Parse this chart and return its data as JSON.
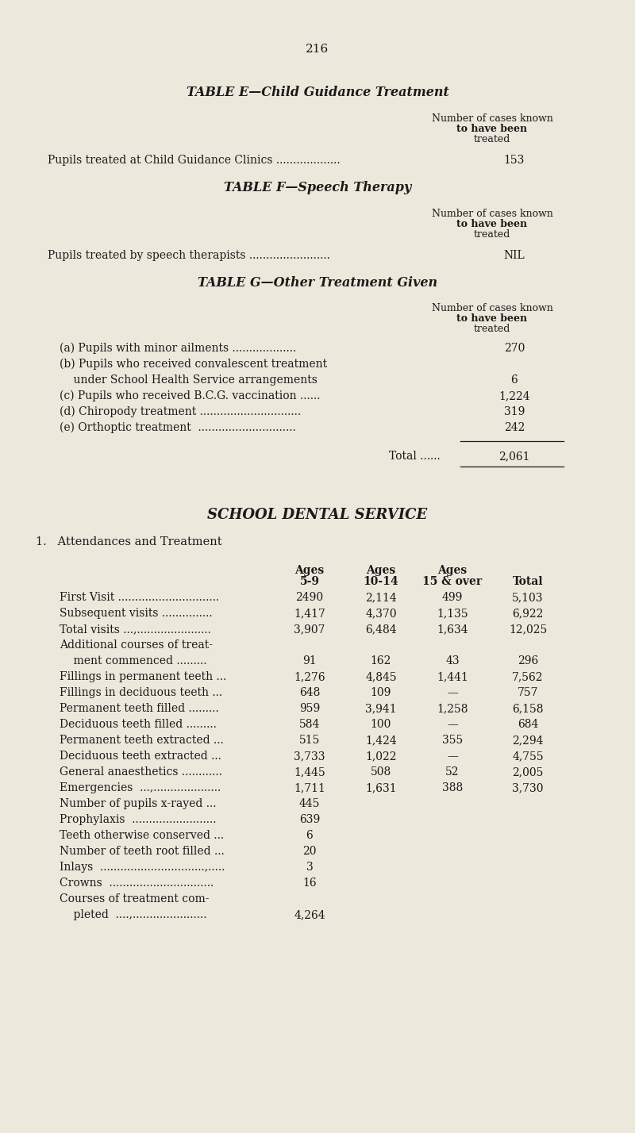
{
  "page_number": "216",
  "bg_color": "#ede8dc",
  "text_color": "#1a1a1a",
  "table_e_title": "TABLE E—Child Guidance Treatment",
  "table_e_row": "Pupils treated at Child Guidance Clinics ...................",
  "table_e_value": "153",
  "table_f_title": "TABLE F—Speech Therapy",
  "table_f_row": "Pupils treated by speech therapists ........................",
  "table_f_value": "NIL",
  "table_g_title": "TABLE G—Other Treatment Given",
  "table_g_rows": [
    "(a) Pupils with minor ailments ...................",
    "(b) Pupils who received convalescent treatment",
    "    under School Health Service arrangements",
    "(c) Pupils who received B.C.G. vaccination ......",
    "(d) Chiropody treatment ..............................",
    "(e) Orthoptic treatment  ............................."
  ],
  "table_g_values": [
    "270",
    "",
    "6",
    "1,224",
    "319",
    "242"
  ],
  "table_g_total_label": "Total ......",
  "table_g_total_value": "2,061",
  "dental_title": "SCHOOL DENTAL SERVICE",
  "dental_subtitle": "1.   Attendances and Treatment",
  "dental_rows": [
    {
      "label": "First Visit ..............................",
      "vals": [
        "2490",
        "2,114",
        "499",
        "5,103"
      ]
    },
    {
      "label": "Subsequent visits ...............",
      "vals": [
        "1,417",
        "4,370",
        "1,135",
        "6,922"
      ]
    },
    {
      "label": "Total visits ...,......................",
      "vals": [
        "3,907",
        "6,484",
        "1,634",
        "12,025"
      ]
    },
    {
      "label": "Additional courses of treat-",
      "vals": [
        "",
        "",
        "",
        ""
      ]
    },
    {
      "label": "    ment commenced .........",
      "vals": [
        "91",
        "162",
        "43",
        "296"
      ]
    },
    {
      "label": "Fillings in permanent teeth ...",
      "vals": [
        "1,276",
        "4,845",
        "1,441",
        "7,562"
      ]
    },
    {
      "label": "Fillings in deciduous teeth ...",
      "vals": [
        "648",
        "109",
        "—",
        "757"
      ]
    },
    {
      "label": "Permanent teeth filled .........",
      "vals": [
        "959",
        "3,941",
        "1,258",
        "6,158"
      ]
    },
    {
      "label": "Deciduous teeth filled .........",
      "vals": [
        "584",
        "100",
        "—",
        "684"
      ]
    },
    {
      "label": "Permanent teeth extracted ...",
      "vals": [
        "515",
        "1,424",
        "355",
        "2,294"
      ]
    },
    {
      "label": "Deciduous teeth extracted ...",
      "vals": [
        "3,733",
        "1,022",
        "—",
        "4,755"
      ]
    },
    {
      "label": "General anaesthetics ............",
      "vals": [
        "1,445",
        "508",
        "52",
        "2,005"
      ]
    },
    {
      "label": "Emergencies  ...,....................",
      "vals": [
        "1,711",
        "1,631",
        "388",
        "3,730"
      ]
    }
  ],
  "dental_single_rows": [
    {
      "label": "Number of pupils x-rayed ...",
      "val": "445"
    },
    {
      "label": "Prophylaxis  .........................",
      "val": "639"
    },
    {
      "label": "Teeth otherwise conserved ...",
      "val": "6"
    },
    {
      "label": "Number of teeth root filled ...",
      "val": "20"
    },
    {
      "label": "Inlays  ...............................,.....",
      "val": "3"
    },
    {
      "label": "Crowns  ...............................",
      "val": "16"
    },
    {
      "label": "Courses of treatment com-",
      "val": ""
    },
    {
      "label": "    pleted  ....,......................",
      "val": "4,264"
    }
  ]
}
